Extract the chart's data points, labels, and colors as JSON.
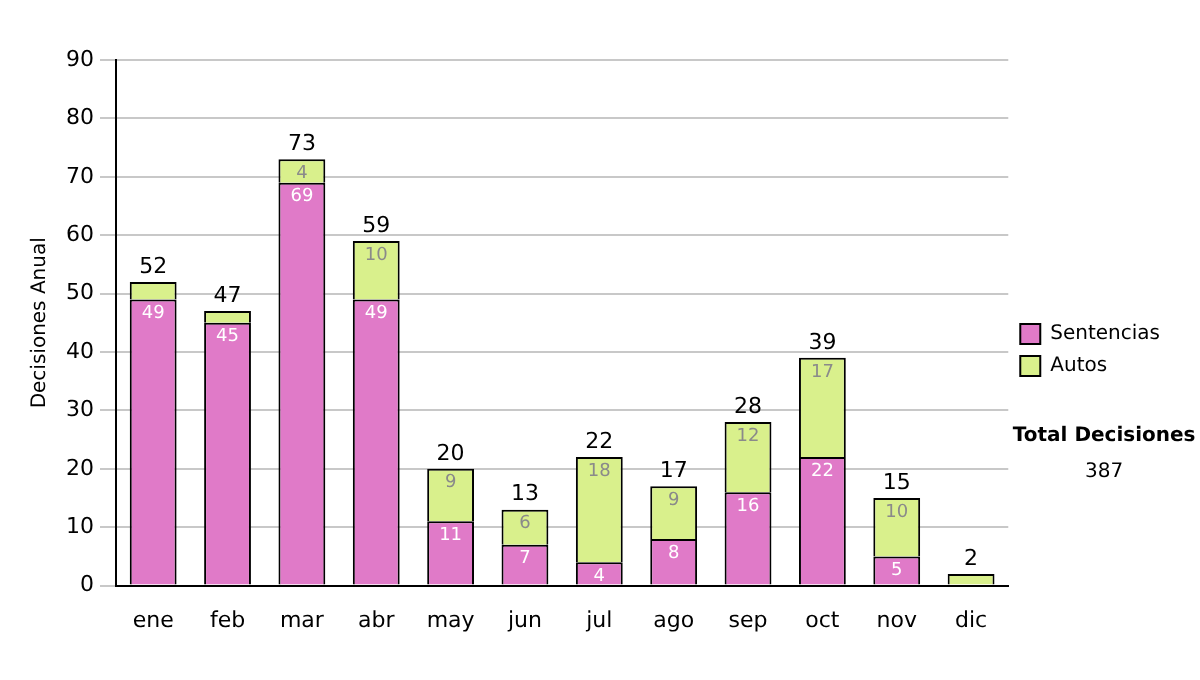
{
  "chart_data": {
    "type": "bar",
    "stacked": true,
    "ylabel": "Decisiones Anual",
    "categories": [
      "ene",
      "feb",
      "mar",
      "abr",
      "may",
      "jun",
      "jul",
      "ago",
      "sep",
      "oct",
      "nov",
      "dic"
    ],
    "series": [
      {
        "name": "Sentencias",
        "color": "#e07ac8",
        "values": [
          49,
          45,
          69,
          49,
          11,
          7,
          4,
          8,
          16,
          22,
          5,
          0
        ],
        "value_labels": [
          "49",
          "45",
          "69",
          "49",
          "11",
          "7",
          "4",
          "8",
          "16",
          "22",
          "5",
          null
        ]
      },
      {
        "name": "Autos",
        "color": "#d9f08c",
        "values": [
          3,
          2,
          4,
          10,
          9,
          6,
          18,
          9,
          12,
          17,
          10,
          2
        ],
        "value_labels": [
          null,
          null,
          "4",
          "10",
          "9",
          "6",
          "18",
          "9",
          "12",
          "17",
          "10",
          null
        ]
      }
    ],
    "totals": [
      "52",
      "47",
      "73",
      "59",
      "20",
      "13",
      "22",
      "17",
      "28",
      "39",
      "15",
      "2"
    ],
    "ylim": [
      0,
      90
    ],
    "yticks": [
      0,
      10,
      20,
      30,
      40,
      50,
      60,
      70,
      80,
      90
    ],
    "grid": "y",
    "legend": "right",
    "annotations": [
      "Total Decisiones",
      "387"
    ]
  }
}
